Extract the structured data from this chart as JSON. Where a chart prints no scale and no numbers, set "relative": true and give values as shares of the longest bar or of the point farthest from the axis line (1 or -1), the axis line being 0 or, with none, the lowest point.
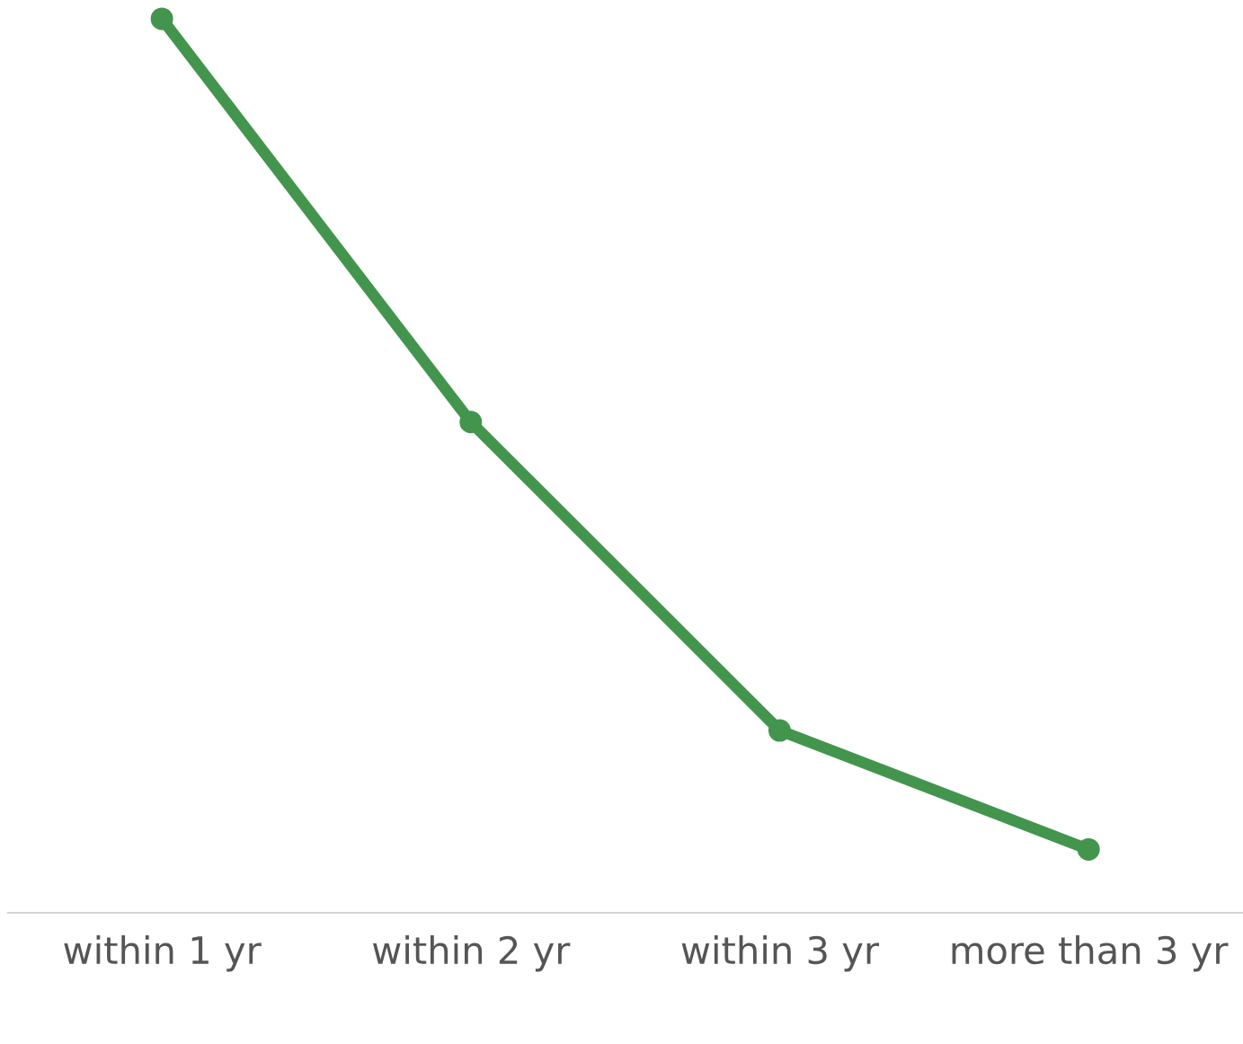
{
  "chart_data": {
    "type": "line",
    "categories": [
      "within 1 yr",
      "within 2 yr",
      "within 3 yr",
      "more than 3 yr"
    ],
    "series": [
      {
        "color": "#43954d",
        "values": [
          1,
          0.549,
          0.204,
          0.071
        ]
      }
    ],
    "relative": true,
    "marker": "circle",
    "line_style": "solid",
    "grid": false,
    "legend": false
  }
}
